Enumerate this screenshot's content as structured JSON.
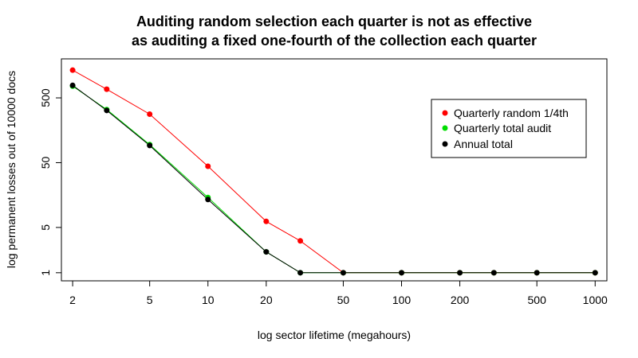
{
  "chart_data": {
    "type": "line",
    "title_lines": [
      "Auditing random selection each quarter is not as effective",
      "as auditing a fixed one-fourth of the collection each quarter"
    ],
    "xlabel": "log sector lifetime (megahours)",
    "ylabel": "log permanent losses out of 10000 docs",
    "x_scale": "log",
    "y_scale": "log",
    "xlim": [
      1.75,
      1150
    ],
    "ylim": [
      0.75,
      2000
    ],
    "x_ticks": [
      2,
      5,
      10,
      20,
      50,
      100,
      200,
      500,
      1000
    ],
    "x_tick_labels": [
      "2",
      "5",
      "10",
      "20",
      "50",
      "100",
      "200",
      "500",
      "1000"
    ],
    "y_ticks": [
      1,
      5,
      50,
      500
    ],
    "y_tick_labels": [
      "1",
      "5",
      "50",
      "500"
    ],
    "grid": false,
    "legend_position": "top-right",
    "series": [
      {
        "name": "Quarterly random 1/4th",
        "color": "#ff0000",
        "x": [
          2,
          3,
          5,
          10,
          20,
          30,
          50,
          100,
          200,
          300,
          500,
          1000
        ],
        "y": [
          1340,
          680,
          280,
          44,
          6.2,
          3.1,
          1,
          1,
          1,
          1,
          1,
          1
        ]
      },
      {
        "name": "Quarterly total audit",
        "color": "#00dd00",
        "x": [
          2,
          3,
          5,
          10,
          20,
          30,
          50,
          100,
          200,
          300,
          500,
          1000
        ],
        "y": [
          760,
          330,
          95,
          14.5,
          2.1,
          1,
          1,
          1,
          1,
          1,
          1,
          1
        ]
      },
      {
        "name": "Annual total",
        "color": "#000000",
        "x": [
          2,
          3,
          5,
          10,
          20,
          30,
          50,
          100,
          200,
          300,
          500,
          1000
        ],
        "y": [
          780,
          320,
          92,
          13.5,
          2.1,
          1,
          1,
          1,
          1,
          1,
          1,
          1
        ]
      }
    ]
  }
}
